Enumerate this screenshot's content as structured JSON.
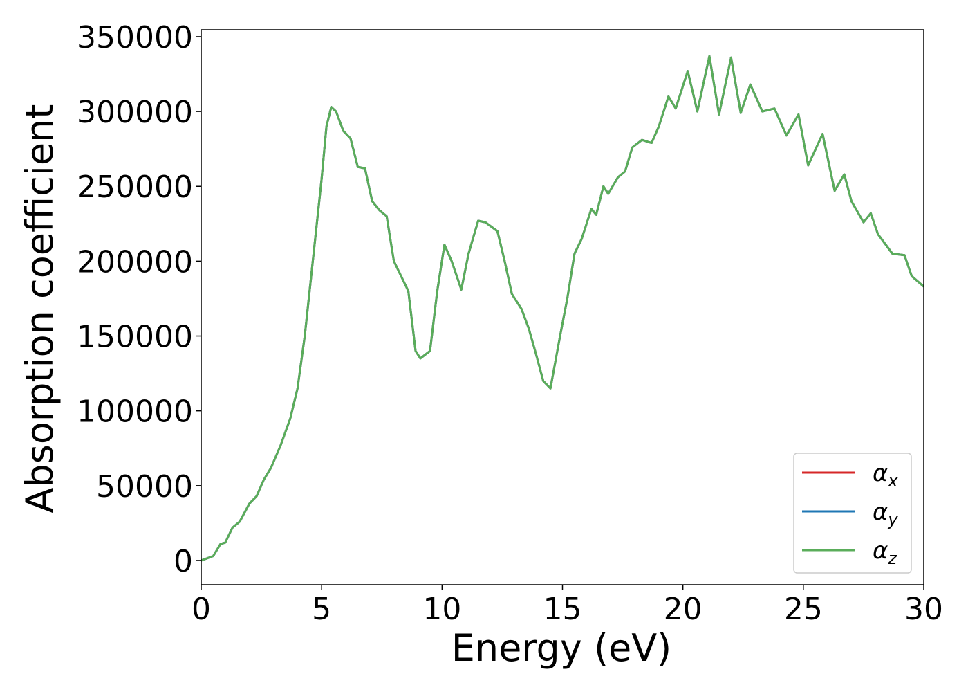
{
  "chart_data": {
    "type": "line",
    "xlabel": "Energy (eV)",
    "ylabel": "Absorption coefficient",
    "x": [
      0,
      0.5,
      0.8,
      1.0,
      1.3,
      1.6,
      2.0,
      2.3,
      2.6,
      2.9,
      3.3,
      3.7,
      4.0,
      4.3,
      4.6,
      5.0,
      5.2,
      5.4,
      5.6,
      5.9,
      6.2,
      6.5,
      6.8,
      7.1,
      7.4,
      7.7,
      8.0,
      8.3,
      8.6,
      8.9,
      9.1,
      9.5,
      9.8,
      10.1,
      10.4,
      10.8,
      11.1,
      11.5,
      11.8,
      12.3,
      12.6,
      12.9,
      13.3,
      13.6,
      13.9,
      14.2,
      14.5,
      14.9,
      15.2,
      15.5,
      15.8,
      16.2,
      16.4,
      16.7,
      16.9,
      17.3,
      17.6,
      17.9,
      18.3,
      18.7,
      19.0,
      19.4,
      19.7,
      20.2,
      20.6,
      21.1,
      21.5,
      22.0,
      22.4,
      22.8,
      23.3,
      23.8,
      24.3,
      24.8,
      25.2,
      25.8,
      26.3,
      26.7,
      27.0,
      27.5,
      27.8,
      28.1,
      28.7,
      29.2,
      29.5,
      30.0
    ],
    "series": [
      {
        "name": "αx",
        "color": "#d62728",
        "values": [
          0,
          3000,
          11000,
          12000,
          22000,
          26000,
          38000,
          43000,
          54000,
          62000,
          77000,
          95000,
          115000,
          150000,
          195000,
          255000,
          290000,
          303000,
          300000,
          287000,
          282000,
          263000,
          262000,
          240000,
          234000,
          230000,
          200000,
          190000,
          180000,
          140000,
          135000,
          140000,
          180000,
          211000,
          200000,
          181000,
          205000,
          227000,
          226000,
          220000,
          200000,
          178000,
          168000,
          155000,
          138000,
          120000,
          115000,
          150000,
          175000,
          205000,
          215000,
          235000,
          231000,
          250000,
          245000,
          256000,
          260000,
          276000,
          281000,
          279000,
          290000,
          310000,
          302000,
          327000,
          300000,
          337000,
          298000,
          336000,
          299000,
          318000,
          300000,
          302000,
          284000,
          298000,
          264000,
          285000,
          247000,
          258000,
          240000,
          226000,
          232000,
          218000,
          205000,
          204000,
          190000,
          183000
        ]
      },
      {
        "name": "αy",
        "color": "#1f77b4",
        "values": [
          0,
          3000,
          11000,
          12000,
          22000,
          26000,
          38000,
          43000,
          54000,
          62000,
          77000,
          95000,
          115000,
          150000,
          195000,
          255000,
          290000,
          303000,
          300000,
          287000,
          282000,
          263000,
          262000,
          240000,
          234000,
          230000,
          200000,
          190000,
          180000,
          140000,
          135000,
          140000,
          180000,
          211000,
          200000,
          181000,
          205000,
          227000,
          226000,
          220000,
          200000,
          178000,
          168000,
          155000,
          138000,
          120000,
          115000,
          150000,
          175000,
          205000,
          215000,
          235000,
          231000,
          250000,
          245000,
          256000,
          260000,
          276000,
          281000,
          279000,
          290000,
          310000,
          302000,
          327000,
          300000,
          337000,
          298000,
          336000,
          299000,
          318000,
          300000,
          302000,
          284000,
          298000,
          264000,
          285000,
          247000,
          258000,
          240000,
          226000,
          232000,
          218000,
          205000,
          204000,
          190000,
          183000
        ]
      },
      {
        "name": "αz",
        "color": "#5aad5a",
        "values": [
          0,
          3000,
          11000,
          12000,
          22000,
          26000,
          38000,
          43000,
          54000,
          62000,
          77000,
          95000,
          115000,
          150000,
          195000,
          255000,
          290000,
          303000,
          300000,
          287000,
          282000,
          263000,
          262000,
          240000,
          234000,
          230000,
          200000,
          190000,
          180000,
          140000,
          135000,
          140000,
          180000,
          211000,
          200000,
          181000,
          205000,
          227000,
          226000,
          220000,
          200000,
          178000,
          168000,
          155000,
          138000,
          120000,
          115000,
          150000,
          175000,
          205000,
          215000,
          235000,
          231000,
          250000,
          245000,
          256000,
          260000,
          276000,
          281000,
          279000,
          290000,
          310000,
          302000,
          327000,
          300000,
          337000,
          298000,
          336000,
          299000,
          318000,
          300000,
          302000,
          284000,
          298000,
          264000,
          285000,
          247000,
          258000,
          240000,
          226000,
          232000,
          218000,
          205000,
          204000,
          190000,
          183000
        ]
      }
    ],
    "xlim": [
      0,
      30
    ],
    "xticks": [
      0,
      5,
      10,
      15,
      20,
      25,
      30
    ],
    "ylim": [
      -16200,
      354600
    ],
    "yticks": [
      0,
      50000,
      100000,
      150000,
      200000,
      250000,
      300000,
      350000
    ],
    "legend": "lower right",
    "grid": false
  }
}
